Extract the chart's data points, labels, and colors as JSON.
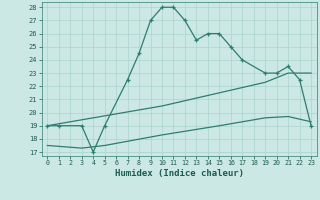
{
  "xlabel": "Humidex (Indice chaleur)",
  "background_color": "#cce8e4",
  "grid_color": "#aad4cc",
  "line_color": "#2e7d6e",
  "xlim": [
    -0.5,
    23.5
  ],
  "ylim": [
    16.7,
    28.4
  ],
  "yticks": [
    17,
    18,
    19,
    20,
    21,
    22,
    23,
    24,
    25,
    26,
    27,
    28
  ],
  "xticks": [
    0,
    1,
    2,
    3,
    4,
    5,
    6,
    7,
    8,
    9,
    10,
    11,
    12,
    13,
    14,
    15,
    16,
    17,
    18,
    19,
    20,
    21,
    22,
    23
  ],
  "line1_x_pts": [
    0,
    1,
    3,
    4,
    5,
    7,
    8,
    9,
    10,
    11,
    12,
    13,
    14,
    15,
    16,
    17,
    19,
    20,
    21,
    22,
    23
  ],
  "line1_y_pts": [
    19,
    19,
    19,
    17,
    19,
    22.5,
    24.5,
    27,
    28,
    28,
    27,
    25.5,
    26,
    26,
    25,
    24,
    23,
    23,
    23.5,
    22.5,
    19
  ],
  "line2_x": [
    0,
    10,
    19,
    21,
    23
  ],
  "line2_y": [
    19.0,
    20.5,
    22.3,
    23.0,
    23.0
  ],
  "line3_x": [
    0,
    3,
    5,
    10,
    15,
    19,
    21,
    23
  ],
  "line3_y": [
    17.5,
    17.3,
    17.5,
    18.3,
    19.0,
    19.6,
    19.7,
    19.3
  ]
}
